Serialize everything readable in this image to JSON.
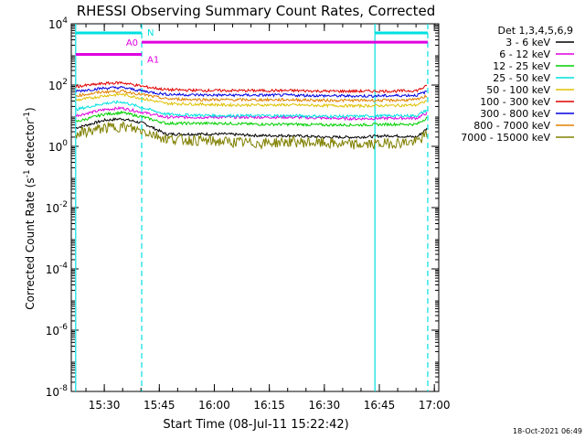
{
  "chart_data": {
    "type": "line",
    "title": "RHESSI Observing Summary Count Rates, Corrected",
    "xlabel": "Start Time (08-Jul-11 15:22:42)",
    "ylabel_main": "Corrected Count Rate (s",
    "ylabel_sup1": "-1",
    "ylabel_mid": " detector",
    "ylabel_sup2": "-1",
    "ylabel_end": ")",
    "x_range_min": [
      15.35,
      17.02
    ],
    "y_log_range_exp": [
      -8,
      4
    ],
    "x_ticks": [
      {
        "label": "15:30",
        "value": 15.5
      },
      {
        "label": "15:45",
        "value": 15.75
      },
      {
        "label": "16:00",
        "value": 16.0
      },
      {
        "label": "16:15",
        "value": 16.25
      },
      {
        "label": "16:30",
        "value": 16.5
      },
      {
        "label": "16:45",
        "value": 16.75
      },
      {
        "label": "17:00",
        "value": 17.0
      }
    ],
    "y_ticks": [
      {
        "base": "10",
        "exp": "-8",
        "value": -8
      },
      {
        "base": "10",
        "exp": "-6",
        "value": -6
      },
      {
        "base": "10",
        "exp": "-4",
        "value": -4
      },
      {
        "base": "10",
        "exp": "-2",
        "value": -2
      },
      {
        "base": "10",
        "exp": "0",
        "value": 0
      },
      {
        "base": "10",
        "exp": "2",
        "value": 2
      },
      {
        "base": "10",
        "exp": "4",
        "value": 4
      }
    ],
    "legend_title": "Det 1,3,4,5,6,9",
    "series": [
      {
        "name": "3 - 6 keV",
        "color": "#000000",
        "log_values": [
          0.6,
          0.85,
          0.9,
          0.75,
          0.4,
          0.4,
          0.4,
          0.35,
          0.35,
          0.3,
          0.3,
          0.35,
          0.3,
          0.6
        ]
      },
      {
        "name": "6 - 12 keV",
        "color": "#e000e0",
        "log_values": [
          1.0,
          1.2,
          1.25,
          1.1,
          0.95,
          0.95,
          0.95,
          0.95,
          0.95,
          0.92,
          0.9,
          0.92,
          0.92,
          1.1
        ]
      },
      {
        "name": "12 - 25 keV",
        "color": "#00d000",
        "log_values": [
          0.8,
          1.05,
          1.1,
          0.95,
          0.75,
          0.75,
          0.75,
          0.72,
          0.72,
          0.7,
          0.7,
          0.72,
          0.72,
          0.95
        ]
      },
      {
        "name": "25 - 50 keV",
        "color": "#00e0e0",
        "log_values": [
          1.2,
          1.4,
          1.45,
          1.25,
          1.05,
          1.02,
          1.0,
          1.0,
          1.0,
          0.98,
          0.98,
          1.0,
          1.0,
          1.2
        ]
      },
      {
        "name": "50 - 100 keV",
        "color": "#e0c000",
        "log_values": [
          1.5,
          1.65,
          1.7,
          1.55,
          1.4,
          1.38,
          1.35,
          1.35,
          1.35,
          1.33,
          1.32,
          1.33,
          1.35,
          1.5
        ]
      },
      {
        "name": "100 - 300 keV",
        "color": "#e00000",
        "log_values": [
          1.95,
          2.05,
          2.08,
          1.95,
          1.85,
          1.83,
          1.82,
          1.82,
          1.82,
          1.8,
          1.8,
          1.8,
          1.82,
          1.98
        ]
      },
      {
        "name": "300 - 800 keV",
        "color": "#0000e0",
        "log_values": [
          1.8,
          1.9,
          1.92,
          1.8,
          1.7,
          1.68,
          1.67,
          1.67,
          1.67,
          1.65,
          1.64,
          1.65,
          1.67,
          1.8
        ]
      },
      {
        "name": "800 - 7000 keV",
        "color": "#e08000",
        "log_values": [
          1.65,
          1.78,
          1.8,
          1.68,
          1.55,
          1.53,
          1.52,
          1.52,
          1.52,
          1.5,
          1.5,
          1.5,
          1.52,
          1.66
        ]
      },
      {
        "name": "7000 - 15000 keV",
        "color": "#808000",
        "log_values": [
          0.4,
          0.6,
          0.65,
          0.5,
          0.25,
          0.2,
          0.15,
          0.1,
          0.15,
          0.1,
          0.05,
          0.1,
          0.15,
          0.4
        ]
      }
    ],
    "series_x_min": [
      15.37,
      15.5,
      15.58,
      15.68,
      15.78,
      15.9,
      16.05,
      16.2,
      16.35,
      16.5,
      16.65,
      16.8,
      16.92,
      16.97
    ],
    "annotations": {
      "n_label": "N",
      "a0_label": "A0",
      "a1_label": "A1",
      "n_color": "#00e0e0",
      "a_color": "#e000e0",
      "n_bars": [
        [
          15.37,
          15.67
        ],
        [
          16.73,
          16.97
        ]
      ],
      "n_log_y": 3.7,
      "a0_bar": [
        15.37,
        15.67
      ],
      "a0_log_y": 3.0,
      "a1_bar": [
        15.67,
        16.97
      ],
      "a1_log_y": 3.4,
      "solid_vlines": [
        15.37,
        16.73
      ],
      "dashed_vlines": [
        15.67,
        16.97
      ],
      "dashed_vline_colors": [
        "#00e0e0",
        "#00e0e0"
      ]
    }
  },
  "timestamp": "18-Oct-2021 06:49"
}
